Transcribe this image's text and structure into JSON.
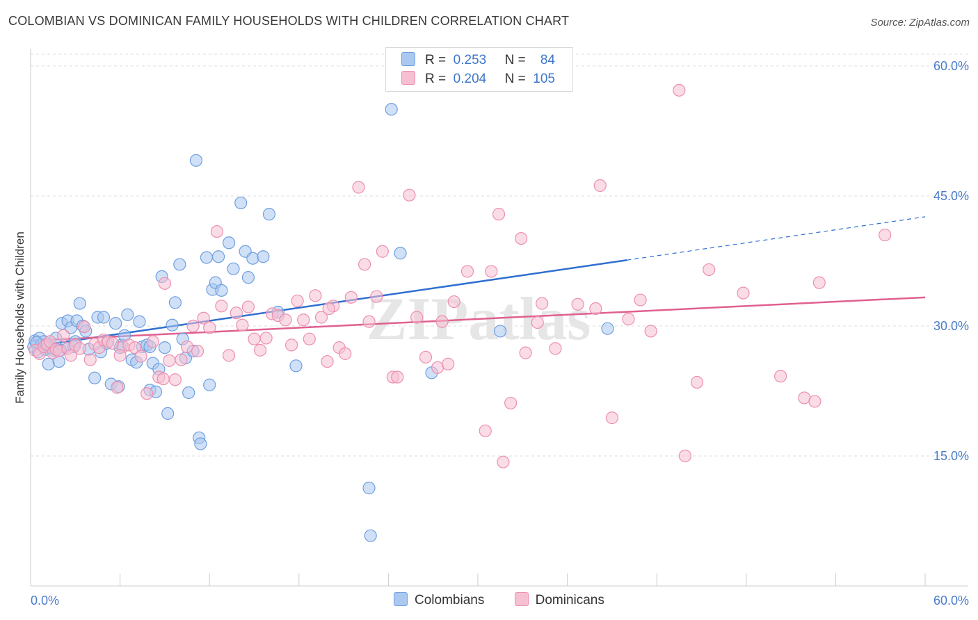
{
  "title": "COLOMBIAN VS DOMINICAN FAMILY HOUSEHOLDS WITH CHILDREN CORRELATION CHART",
  "source": "Source: ZipAtlas.com",
  "watermark": "ZIPatlas",
  "legend": {
    "rows": [
      {
        "r_label": "R =",
        "r_value": "0.253",
        "n_label": "N =",
        "n_value": "84",
        "color": "#aac8f0"
      },
      {
        "r_label": "R =",
        "r_value": "0.204",
        "n_label": "N =",
        "n_value": "105",
        "color": "#f6c0d2"
      }
    ]
  },
  "chart_data": {
    "type": "scatter",
    "title": "COLOMBIAN VS DOMINICAN FAMILY HOUSEHOLDS WITH CHILDREN CORRELATION CHART",
    "xlabel": "",
    "ylabel": "Family Households with Children",
    "xlim": [
      0,
      60
    ],
    "ylim": [
      0,
      62
    ],
    "x_tick_labels": [
      "0.0%",
      "60.0%"
    ],
    "y_ticks": [
      15,
      30,
      45,
      60
    ],
    "y_tick_labels": [
      "15.0%",
      "30.0%",
      "45.0%",
      "60.0%"
    ],
    "grid": true,
    "legend_position": "bottom",
    "series": [
      {
        "name": "Colombians",
        "color": "#6f9fe0",
        "fill": "#aac8f0",
        "line_color": "#2f6fd0",
        "trend": {
          "x0": 0,
          "y0": 27.6,
          "x1": 40,
          "y1": 37.6,
          "dashed_to_x": 60,
          "dashed_to_y": 42.6
        },
        "points": [
          [
            0.2,
            27.6
          ],
          [
            0.3,
            28.3
          ],
          [
            0.5,
            27.0
          ],
          [
            0.6,
            28.6
          ],
          [
            0.7,
            27.8
          ],
          [
            0.9,
            28.2
          ],
          [
            1.0,
            27.3
          ],
          [
            1.2,
            25.6
          ],
          [
            1.5,
            27.2
          ],
          [
            1.7,
            28.6
          ],
          [
            1.9,
            25.9
          ],
          [
            2.1,
            30.3
          ],
          [
            2.3,
            27.5
          ],
          [
            2.5,
            30.6
          ],
          [
            2.7,
            29.8
          ],
          [
            2.9,
            27.6
          ],
          [
            3.1,
            30.6
          ],
          [
            3.3,
            32.6
          ],
          [
            3.5,
            30.0
          ],
          [
            3.7,
            29.4
          ],
          [
            3.9,
            27.3
          ],
          [
            4.3,
            24.0
          ],
          [
            4.5,
            31.0
          ],
          [
            4.7,
            27.0
          ],
          [
            4.9,
            31.0
          ],
          [
            5.1,
            28.0
          ],
          [
            5.4,
            23.3
          ],
          [
            5.7,
            30.3
          ],
          [
            5.9,
            23.0
          ],
          [
            6.1,
            27.8
          ],
          [
            6.3,
            28.9
          ],
          [
            6.5,
            31.3
          ],
          [
            6.8,
            26.1
          ],
          [
            7.1,
            25.8
          ],
          [
            7.3,
            30.5
          ],
          [
            7.5,
            27.6
          ],
          [
            7.8,
            27.8
          ],
          [
            8.0,
            22.6
          ],
          [
            8.2,
            25.7
          ],
          [
            8.4,
            22.4
          ],
          [
            8.6,
            25.0
          ],
          [
            8.8,
            35.7
          ],
          [
            9.0,
            27.5
          ],
          [
            9.2,
            19.9
          ],
          [
            9.5,
            30.1
          ],
          [
            9.7,
            32.7
          ],
          [
            10.0,
            37.1
          ],
          [
            10.2,
            28.5
          ],
          [
            10.4,
            26.3
          ],
          [
            10.6,
            22.3
          ],
          [
            10.9,
            27.1
          ],
          [
            11.1,
            49.1
          ],
          [
            11.3,
            17.1
          ],
          [
            11.4,
            16.4
          ],
          [
            11.8,
            37.9
          ],
          [
            12.0,
            23.2
          ],
          [
            12.2,
            34.2
          ],
          [
            12.4,
            35.0
          ],
          [
            12.6,
            38.0
          ],
          [
            12.8,
            34.1
          ],
          [
            13.3,
            39.6
          ],
          [
            13.6,
            36.6
          ],
          [
            14.1,
            44.2
          ],
          [
            14.4,
            38.6
          ],
          [
            14.6,
            35.6
          ],
          [
            14.9,
            37.8
          ],
          [
            15.6,
            38.0
          ],
          [
            16.0,
            42.9
          ],
          [
            16.6,
            31.6
          ],
          [
            17.8,
            25.4
          ],
          [
            22.7,
            11.3
          ],
          [
            22.8,
            5.8
          ],
          [
            24.2,
            55.0
          ],
          [
            24.8,
            38.4
          ],
          [
            26.9,
            24.6
          ],
          [
            31.5,
            29.4
          ],
          [
            38.7,
            29.7
          ],
          [
            1.0,
            27.8
          ],
          [
            2.0,
            27.2
          ],
          [
            3.0,
            28.2
          ],
          [
            6.0,
            27.5
          ],
          [
            8.0,
            27.6
          ],
          [
            0.4,
            28.1
          ],
          [
            1.4,
            27.5
          ]
        ]
      },
      {
        "name": "Dominicans",
        "color": "#ec8fb0",
        "fill": "#f6c0d2",
        "line_color": "#e06090",
        "trend": {
          "x0": 0,
          "y0": 28.3,
          "x1": 60,
          "y1": 33.3
        },
        "points": [
          [
            0.3,
            27.2
          ],
          [
            0.6,
            26.8
          ],
          [
            0.9,
            27.6
          ],
          [
            1.1,
            27.9
          ],
          [
            1.3,
            28.2
          ],
          [
            1.5,
            26.9
          ],
          [
            1.7,
            27.3
          ],
          [
            1.9,
            27.1
          ],
          [
            2.2,
            28.9
          ],
          [
            2.5,
            27.4
          ],
          [
            2.7,
            26.6
          ],
          [
            3.0,
            27.8
          ],
          [
            3.3,
            27.4
          ],
          [
            3.6,
            29.9
          ],
          [
            4.0,
            26.1
          ],
          [
            4.3,
            27.9
          ],
          [
            4.6,
            27.5
          ],
          [
            4.9,
            28.4
          ],
          [
            5.2,
            28.2
          ],
          [
            5.5,
            28.0
          ],
          [
            5.8,
            22.9
          ],
          [
            6.2,
            27.6
          ],
          [
            6.6,
            27.8
          ],
          [
            7.0,
            27.5
          ],
          [
            7.4,
            26.5
          ],
          [
            7.8,
            22.2
          ],
          [
            8.2,
            28.2
          ],
          [
            8.6,
            24.1
          ],
          [
            8.9,
            23.9
          ],
          [
            9.3,
            26.0
          ],
          [
            9.7,
            23.8
          ],
          [
            10.1,
            26.1
          ],
          [
            10.5,
            27.6
          ],
          [
            10.9,
            30.0
          ],
          [
            11.2,
            27.1
          ],
          [
            11.6,
            30.9
          ],
          [
            12.0,
            29.8
          ],
          [
            12.5,
            40.9
          ],
          [
            12.8,
            32.3
          ],
          [
            13.3,
            26.6
          ],
          [
            13.8,
            31.5
          ],
          [
            14.2,
            30.1
          ],
          [
            14.6,
            32.2
          ],
          [
            15.0,
            28.5
          ],
          [
            15.4,
            27.2
          ],
          [
            15.8,
            28.6
          ],
          [
            16.2,
            31.4
          ],
          [
            16.6,
            31.2
          ],
          [
            17.1,
            30.7
          ],
          [
            17.5,
            27.8
          ],
          [
            17.9,
            32.9
          ],
          [
            18.3,
            30.7
          ],
          [
            18.7,
            28.5
          ],
          [
            19.1,
            33.5
          ],
          [
            19.5,
            31.0
          ],
          [
            19.9,
            25.9
          ],
          [
            20.3,
            32.3
          ],
          [
            20.7,
            27.5
          ],
          [
            21.1,
            26.8
          ],
          [
            21.5,
            33.3
          ],
          [
            22.0,
            46.0
          ],
          [
            22.4,
            37.1
          ],
          [
            22.7,
            30.5
          ],
          [
            23.2,
            33.4
          ],
          [
            23.6,
            38.6
          ],
          [
            24.3,
            24.1
          ],
          [
            24.6,
            24.1
          ],
          [
            25.4,
            45.1
          ],
          [
            25.9,
            31.0
          ],
          [
            26.5,
            26.4
          ],
          [
            27.3,
            25.2
          ],
          [
            27.6,
            30.5
          ],
          [
            28.0,
            25.6
          ],
          [
            28.4,
            32.8
          ],
          [
            29.3,
            36.3
          ],
          [
            30.5,
            17.9
          ],
          [
            30.9,
            36.3
          ],
          [
            31.4,
            42.9
          ],
          [
            31.7,
            14.3
          ],
          [
            32.2,
            21.1
          ],
          [
            32.9,
            40.1
          ],
          [
            33.2,
            26.9
          ],
          [
            34.0,
            30.4
          ],
          [
            34.3,
            32.6
          ],
          [
            35.2,
            27.4
          ],
          [
            36.7,
            32.5
          ],
          [
            37.9,
            32.0
          ],
          [
            38.2,
            46.2
          ],
          [
            39.0,
            19.4
          ],
          [
            40.1,
            30.8
          ],
          [
            40.9,
            33.0
          ],
          [
            41.6,
            29.4
          ],
          [
            43.5,
            57.2
          ],
          [
            43.9,
            15.0
          ],
          [
            44.7,
            23.5
          ],
          [
            45.5,
            36.5
          ],
          [
            47.8,
            33.8
          ],
          [
            50.3,
            24.2
          ],
          [
            51.9,
            21.7
          ],
          [
            52.6,
            21.3
          ],
          [
            52.9,
            35.0
          ],
          [
            57.3,
            40.5
          ],
          [
            6.0,
            26.6
          ],
          [
            20.0,
            32.0
          ],
          [
            9.0,
            34.9
          ]
        ]
      }
    ]
  },
  "bottom_legend": [
    {
      "label": "Colombians",
      "color": "#aac8f0"
    },
    {
      "label": "Dominicans",
      "color": "#f6c0d2"
    }
  ]
}
